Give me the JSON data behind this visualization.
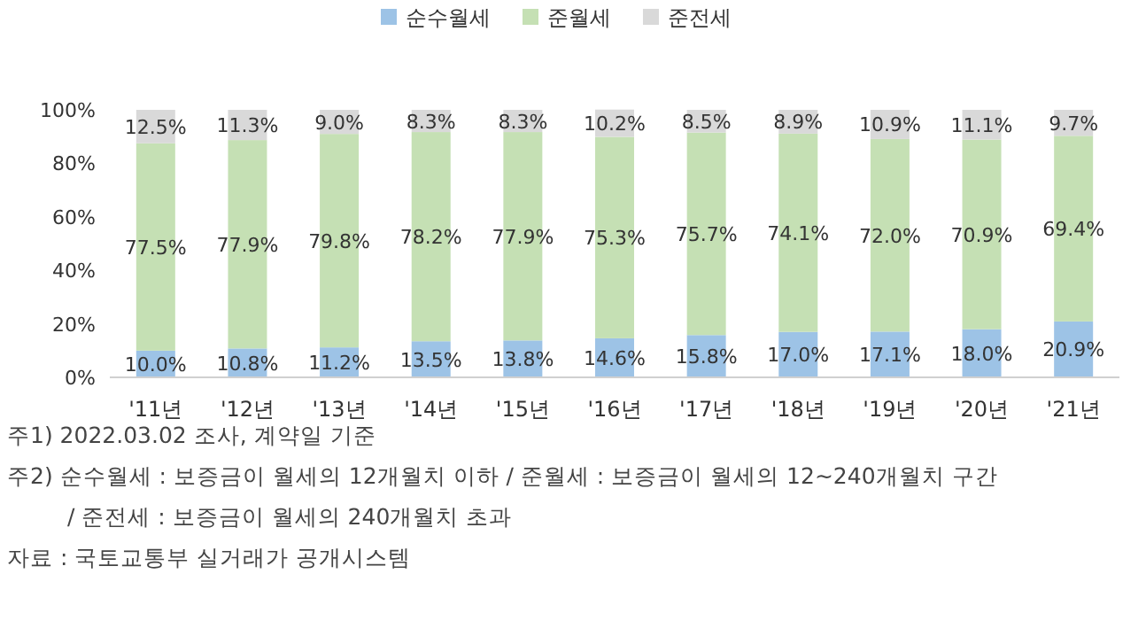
{
  "chart_data": {
    "type": "bar",
    "stacked": true,
    "categories": [
      "'11년",
      "'12년",
      "'13년",
      "'14년",
      "'15년",
      "'16년",
      "'17년",
      "'18년",
      "'19년",
      "'20년",
      "'21년"
    ],
    "series": [
      {
        "name": "순수월세",
        "color": "#9dc3e6",
        "values": [
          10.0,
          10.8,
          11.2,
          13.5,
          13.8,
          14.6,
          15.8,
          17.0,
          17.1,
          18.0,
          20.9
        ],
        "value_labels": [
          "10.0%",
          "10.8%",
          "11.2%",
          "13.5%",
          "13.8%",
          "14.6%",
          "15.8%",
          "17.0%",
          "17.1%",
          "18.0%",
          "20.9%"
        ]
      },
      {
        "name": "준월세",
        "color": "#c5e0b4",
        "values": [
          77.5,
          77.9,
          79.8,
          78.2,
          77.9,
          75.3,
          75.7,
          74.1,
          72.0,
          70.9,
          69.4
        ],
        "value_labels": [
          "77.5%",
          "77.9%",
          "79.8%",
          "78.2%",
          "77.9%",
          "75.3%",
          "75.7%",
          "74.1%",
          "72.0%",
          "70.9%",
          "69.4%"
        ]
      },
      {
        "name": "준전세",
        "color": "#d9d9d9",
        "values": [
          12.5,
          11.3,
          9.0,
          8.3,
          8.3,
          10.2,
          8.5,
          8.9,
          10.9,
          11.1,
          9.7
        ],
        "value_labels": [
          "12.5%",
          "11.3%",
          "9.0%",
          "8.3%",
          "8.3%",
          "10.2%",
          "8.5%",
          "8.9%",
          "10.9%",
          "11.1%",
          "9.7%"
        ]
      }
    ],
    "ylim": [
      0,
      100
    ],
    "yticks": [
      {
        "value": 0,
        "label": "0%"
      },
      {
        "value": 20,
        "label": "20%"
      },
      {
        "value": 40,
        "label": "40%"
      },
      {
        "value": 60,
        "label": "60%"
      },
      {
        "value": 80,
        "label": "80%"
      },
      {
        "value": 100,
        "label": "100%"
      }
    ],
    "grid": false,
    "legend": "top",
    "annotations": [
      "주1) 2022.03.02 조사, 계약일 기준",
      "주2) 순수월세 : 보증금이 월세의 12개월치 이하 / 준월세 : 보증금이 월세의 12~240개월치 구간",
      "/ 준전세 : 보증금이 월세의 240개월치 초과",
      "자료 : 국토교통부 실거래가 공개시스템"
    ]
  }
}
